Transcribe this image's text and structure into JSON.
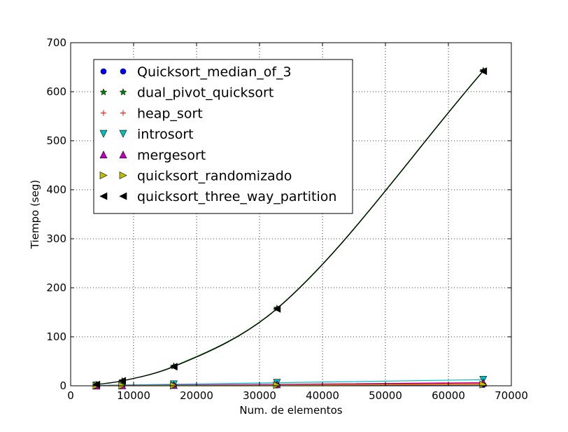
{
  "chart_data": {
    "type": "line",
    "title": "",
    "xlabel": "Num. de elementos",
    "ylabel": "Tiempo (seg)",
    "xlim": [
      0,
      70000
    ],
    "ylim": [
      0,
      700
    ],
    "xticks": [
      0,
      10000,
      20000,
      30000,
      40000,
      50000,
      60000,
      70000
    ],
    "yticks": [
      0,
      100,
      200,
      300,
      400,
      500,
      600,
      700
    ],
    "grid": true,
    "legend_position": "top-left",
    "x": [
      4096,
      8192,
      16384,
      32768,
      65536
    ],
    "series": [
      {
        "name": "Quicksort_median_of_3",
        "marker": "circle",
        "color": "#0000ff",
        "values": [
          0.1,
          0.2,
          0.5,
          1.0,
          2.0
        ]
      },
      {
        "name": "dual_pivot_quicksort",
        "marker": "star",
        "color": "#008000",
        "values": [
          2.5,
          10,
          40,
          158,
          643
        ]
      },
      {
        "name": "heap_sort",
        "marker": "plus",
        "color": "#ff0000",
        "values": [
          0.2,
          0.5,
          1.0,
          2.2,
          4.5
        ]
      },
      {
        "name": "introsort",
        "marker": "triangle-down",
        "color": "#00bfbf",
        "values": [
          0.8,
          1.6,
          3.2,
          6.2,
          12.5
        ]
      },
      {
        "name": "mergesort",
        "marker": "triangle-up",
        "color": "#bf00bf",
        "values": [
          0.3,
          0.7,
          1.5,
          3.0,
          6.5
        ]
      },
      {
        "name": "quicksort_randomizado",
        "marker": "triangle-right",
        "color": "#bfbf00",
        "values": [
          0.1,
          0.3,
          0.6,
          1.2,
          2.5
        ]
      },
      {
        "name": "quicksort_three_way_partition",
        "marker": "triangle-left",
        "color": "#000000",
        "values": [
          2.5,
          10,
          39,
          157,
          642
        ]
      }
    ]
  }
}
